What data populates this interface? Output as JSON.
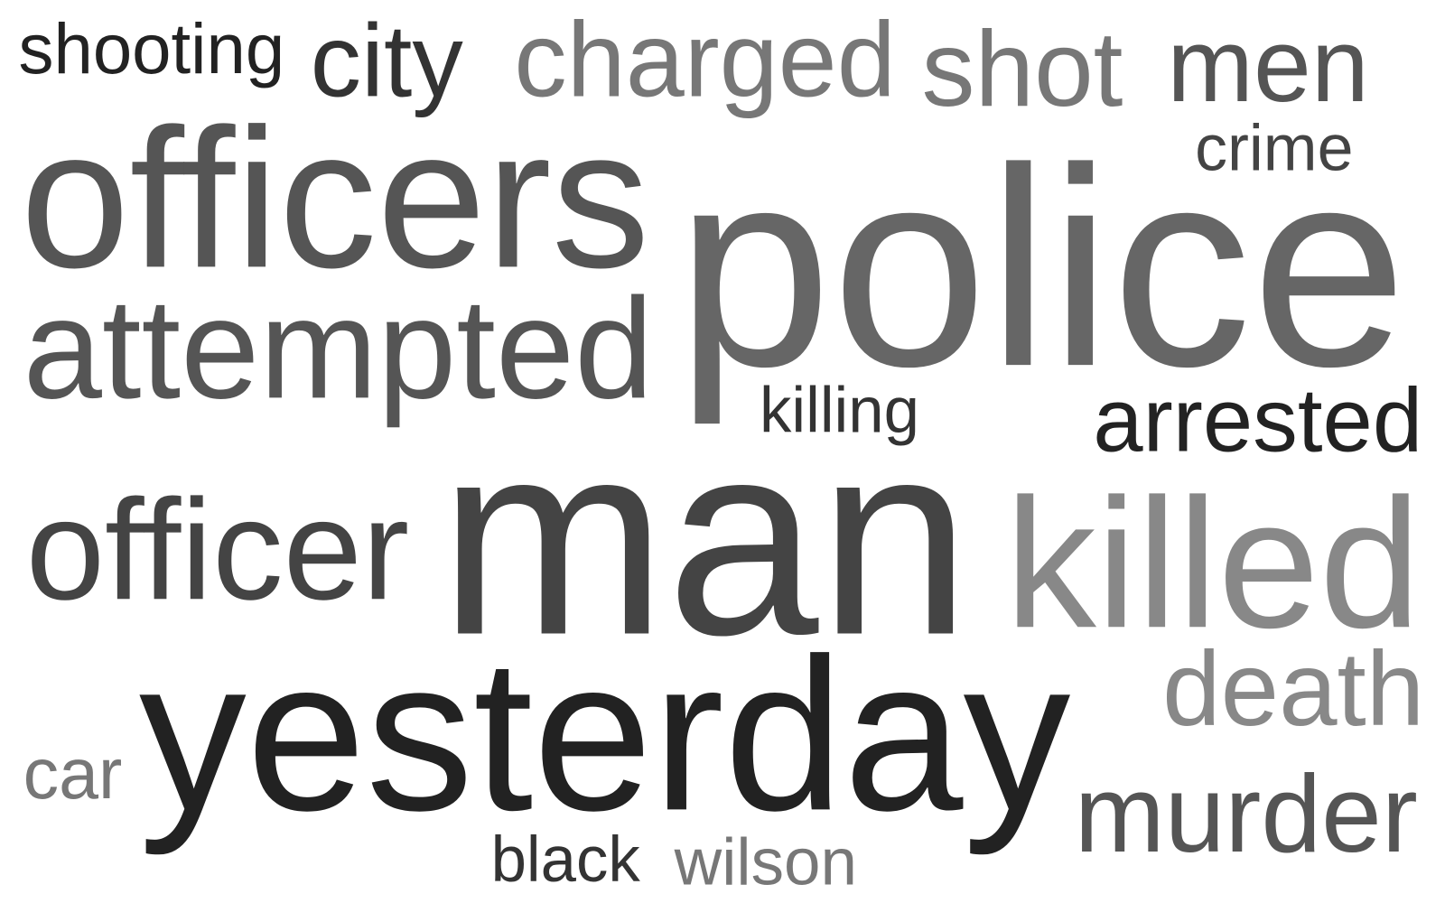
{
  "words": [
    "shooting",
    "city",
    "charged",
    "shot",
    "men",
    "crime",
    "officers",
    "police",
    "attempted",
    "killing",
    "arrested",
    "officer",
    "man",
    "killed",
    "death",
    "yesterday",
    "car",
    "murder",
    "black",
    "wilson"
  ]
}
